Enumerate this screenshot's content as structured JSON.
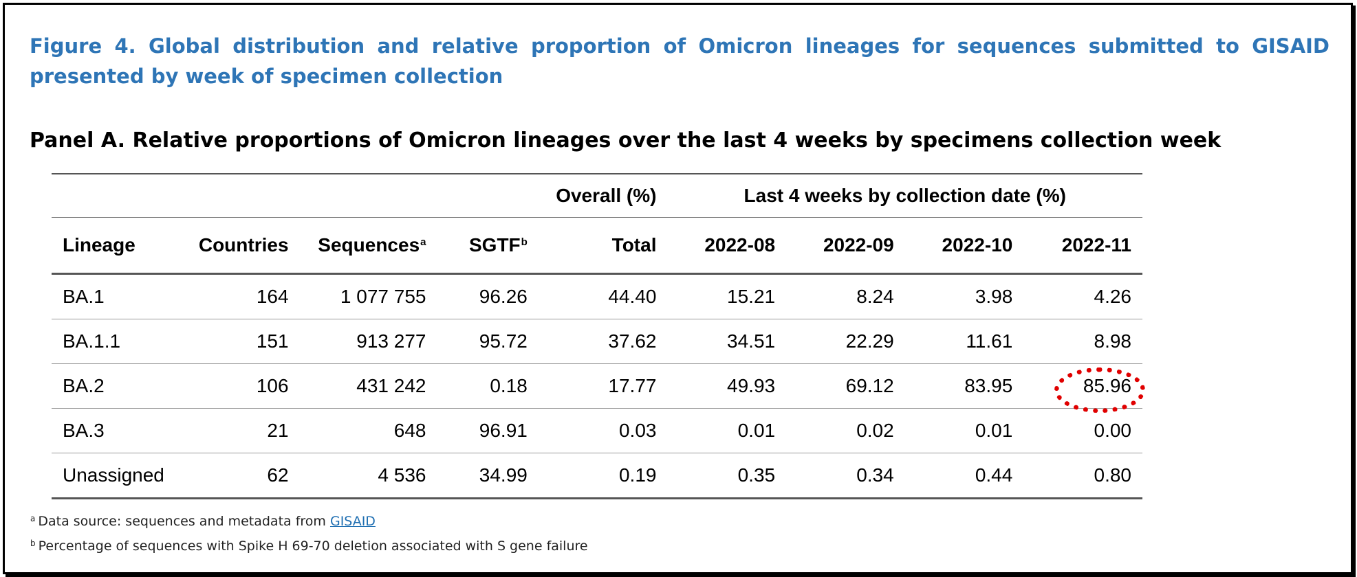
{
  "figure": {
    "title": "Figure 4. Global distribution and relative proportion of Omicron lineages for sequences submitted to GISAID presented by week of specimen collection",
    "panel_title": "Panel A. Relative proportions of Omicron lineages over the last 4 weeks by specimens collection week"
  },
  "table": {
    "group_headers": {
      "overall": "Overall (%)",
      "last4": "Last 4 weeks by collection date (%)"
    },
    "columns": {
      "lineage": "Lineage",
      "countries": "Countries",
      "sequences": "Sequences",
      "sequences_note": "a",
      "sgtf": "SGTF",
      "sgtf_note": "b",
      "total": "Total",
      "w1": "2022-08",
      "w2": "2022-09",
      "w3": "2022-10",
      "w4": "2022-11"
    },
    "rows": [
      {
        "lineage": "BA.1",
        "countries": "164",
        "sequences": "1 077 755",
        "sgtf": "96.26",
        "total": "44.40",
        "w1": "15.21",
        "w2": "8.24",
        "w3": "3.98",
        "w4": "4.26"
      },
      {
        "lineage": "BA.1.1",
        "countries": "151",
        "sequences": "913 277",
        "sgtf": "95.72",
        "total": "37.62",
        "w1": "34.51",
        "w2": "22.29",
        "w3": "11.61",
        "w4": "8.98"
      },
      {
        "lineage": "BA.2",
        "countries": "106",
        "sequences": "431 242",
        "sgtf": "0.18",
        "total": "17.77",
        "w1": "49.93",
        "w2": "69.12",
        "w3": "83.95",
        "w4": "85.96"
      },
      {
        "lineage": "BA.3",
        "countries": "21",
        "sequences": "648",
        "sgtf": "96.91",
        "total": "0.03",
        "w1": "0.01",
        "w2": "0.02",
        "w3": "0.01",
        "w4": "0.00"
      },
      {
        "lineage": "Unassigned",
        "countries": "62",
        "sequences": "4 536",
        "sgtf": "34.99",
        "total": "0.19",
        "w1": "0.35",
        "w2": "0.34",
        "w3": "0.44",
        "w4": "0.80"
      }
    ],
    "highlight_color": "#e00000"
  },
  "footnotes": {
    "a_mark": "a",
    "a_text": "Data source: sequences and metadata from ",
    "a_link": "GISAID",
    "b_mark": "b",
    "b_text": "Percentage of sequences with Spike H 69-70 deletion associated with S gene failure"
  },
  "colors": {
    "title_blue": "#2e75b6",
    "link_blue": "#1f6fb2",
    "border": "#000000"
  }
}
